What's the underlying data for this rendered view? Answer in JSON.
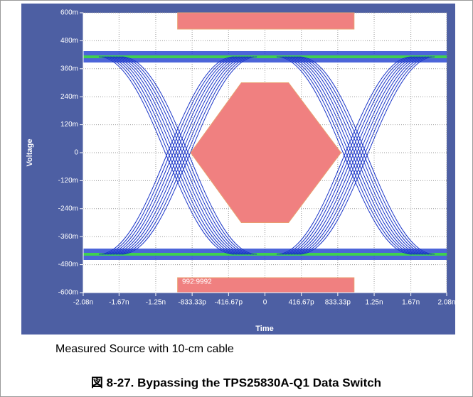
{
  "chart_data": {
    "type": "eye",
    "ylabel": "Voltage",
    "xlabel": "Time",
    "annotation": "992:9992",
    "caption": "Measured Source with 10-cm cable",
    "figure_title": "図 8-27. Bypassing the TPS25830A-Q1 Data Switch",
    "xlim": [
      -2.08e-09,
      2.08e-09
    ],
    "ylim": [
      -0.6,
      0.6
    ],
    "xticks": [
      {
        "value": -2.08e-09,
        "label": "-2.08n"
      },
      {
        "value": -1.67e-09,
        "label": "-1.67n"
      },
      {
        "value": -1.25e-09,
        "label": "-1.25n"
      },
      {
        "value": -8.3333e-10,
        "label": "-833.33p"
      },
      {
        "value": -4.1667e-10,
        "label": "-416.67p"
      },
      0,
      {
        "value": 4.1667e-10,
        "label": "416.67p"
      },
      {
        "value": 8.3333e-10,
        "label": "833.33p"
      },
      {
        "value": 1.25e-09,
        "label": "1.25n"
      },
      {
        "value": 1.67e-09,
        "label": "1.67n"
      },
      {
        "value": 2.08e-09,
        "label": "2.08n"
      }
    ],
    "yticks": [
      {
        "value": 0.6,
        "label": "600m"
      },
      {
        "value": 0.48,
        "label": "480m"
      },
      {
        "value": 0.36,
        "label": "360m"
      },
      {
        "value": 0.24,
        "label": "240m"
      },
      {
        "value": 0.12,
        "label": "120m"
      },
      0,
      {
        "value": -0.12,
        "label": "-120m"
      },
      {
        "value": -0.24,
        "label": "-240m"
      },
      {
        "value": -0.36,
        "label": "-360m"
      },
      {
        "value": -0.48,
        "label": "-480m"
      },
      {
        "value": -0.6,
        "label": "-600m"
      }
    ],
    "grid": true,
    "mask_color": "#f08080",
    "masks": [
      {
        "x": [
          -8.5e-10,
          -2.7e-10,
          2.7e-10,
          8.7e-10,
          2.7e-10,
          -2.7e-10
        ],
        "y": [
          0,
          0.3,
          0.3,
          0,
          -0.3,
          -0.3
        ]
      },
      {
        "x": [
          -1e-09,
          1.02e-09,
          1.02e-09,
          -1e-09
        ],
        "y": [
          0.6,
          0.6,
          0.53,
          0.53
        ]
      },
      {
        "x": [
          -1e-09,
          1.02e-09,
          1.02e-09,
          -1e-09
        ],
        "y": [
          -0.536,
          -0.536,
          -0.6,
          -0.6
        ]
      }
    ]
  }
}
